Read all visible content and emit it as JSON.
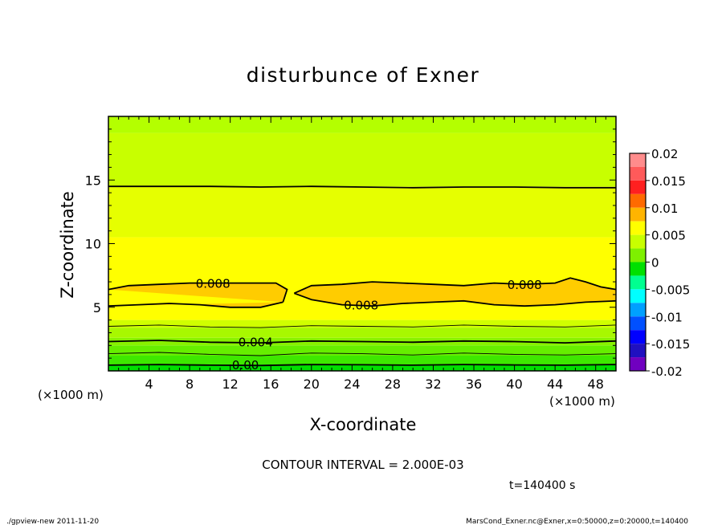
{
  "chart_data": {
    "type": "contour",
    "title": "disturbunce of Exner",
    "xlabel": "X-coordinate",
    "ylabel": "Z-coordinate",
    "x_unit_label": "(×1000 m)",
    "z_unit_label": "(×1000 m)",
    "xlim": [
      0,
      50
    ],
    "ylim": [
      0,
      20
    ],
    "x_ticks": [
      4,
      8,
      12,
      16,
      20,
      24,
      28,
      32,
      36,
      40,
      44,
      48
    ],
    "y_ticks": [
      5,
      10,
      15
    ],
    "colorbar": {
      "range": [
        -0.02,
        0.02
      ],
      "ticks": [
        "0.02",
        "0.015",
        "0.01",
        "0.005",
        "0",
        "-0.005",
        "-0.01",
        "-0.015",
        "-0.02"
      ],
      "levels": [
        {
          "from": 0.0175,
          "to": 0.02,
          "color": "#ff8c8c"
        },
        {
          "from": 0.015,
          "to": 0.0175,
          "color": "#ff5a5a"
        },
        {
          "from": 0.0125,
          "to": 0.015,
          "color": "#ff2020"
        },
        {
          "from": 0.01,
          "to": 0.0125,
          "color": "#ff6a00"
        },
        {
          "from": 0.0075,
          "to": 0.01,
          "color": "#ffb400"
        },
        {
          "from": 0.005,
          "to": 0.0075,
          "color": "#ffff00"
        },
        {
          "from": 0.0025,
          "to": 0.005,
          "color": "#c8ff00"
        },
        {
          "from": 0.0,
          "to": 0.0025,
          "color": "#7ef000"
        },
        {
          "from": -0.0025,
          "to": 0.0,
          "color": "#00e000"
        },
        {
          "from": -0.005,
          "to": -0.0025,
          "color": "#00ff90"
        },
        {
          "from": -0.0075,
          "to": -0.005,
          "color": "#00ffff"
        },
        {
          "from": -0.01,
          "to": -0.0075,
          "color": "#00a0ff"
        },
        {
          "from": -0.0125,
          "to": -0.01,
          "color": "#0050ff"
        },
        {
          "from": -0.015,
          "to": -0.0125,
          "color": "#0000ff"
        },
        {
          "from": -0.0175,
          "to": -0.015,
          "color": "#2010c0"
        },
        {
          "from": -0.02,
          "to": -0.0175,
          "color": "#7000c0"
        }
      ]
    },
    "bands": [
      {
        "z_from": 0.0,
        "z_to": 0.5,
        "color": "#00e000"
      },
      {
        "z_from": 0.5,
        "z_to": 1.2,
        "color": "#3ee800"
      },
      {
        "z_from": 1.2,
        "z_to": 2.0,
        "color": "#66ee00"
      },
      {
        "z_from": 2.0,
        "z_to": 2.6,
        "color": "#88f200"
      },
      {
        "z_from": 2.6,
        "z_to": 3.4,
        "color": "#a8f800"
      },
      {
        "z_from": 3.4,
        "z_to": 4.0,
        "color": "#d0ff00"
      },
      {
        "z_from": 4.0,
        "z_to": 10.5,
        "color": "#ffff00"
      },
      {
        "z_from": 10.5,
        "z_to": 14.5,
        "color": "#e6ff00"
      },
      {
        "z_from": 14.5,
        "z_to": 18.7,
        "color": "#c8ff00"
      },
      {
        "z_from": 18.7,
        "z_to": 20.0,
        "color": "#b4ff00"
      }
    ],
    "contour_interval_value": 0.002,
    "contour_lines": [
      {
        "level": 0.0,
        "label": "0.00",
        "label_x": 13.5,
        "z": [
          0.45,
          0.5,
          0.45,
          0.42,
          0.5,
          0.48,
          0.45,
          0.5,
          0.47,
          0.45,
          0.5
        ]
      },
      {
        "level": 0.002,
        "z": [
          1.35,
          1.45,
          1.3,
          1.2,
          1.4,
          1.35,
          1.25,
          1.4,
          1.3,
          1.25,
          1.35
        ]
      },
      {
        "level": 0.004,
        "label": "0.004",
        "label_x": 14.5,
        "z": [
          2.3,
          2.4,
          2.25,
          2.2,
          2.35,
          2.3,
          2.25,
          2.35,
          2.3,
          2.2,
          2.35
        ]
      },
      {
        "level": 0.006,
        "z": [
          3.5,
          3.6,
          3.45,
          3.4,
          3.55,
          3.5,
          3.45,
          3.6,
          3.5,
          3.45,
          3.6
        ]
      },
      {
        "level": 0.01,
        "z": [
          14.5,
          14.5,
          14.5,
          14.45,
          14.5,
          14.45,
          14.4,
          14.45,
          14.45,
          14.4,
          14.4
        ]
      }
    ],
    "contour_008_labels": [
      {
        "label": "0.008",
        "x": 10.3,
        "z": 6.9
      },
      {
        "label": "0.008",
        "x": 24.9,
        "z": 5.2
      },
      {
        "label": "0.008",
        "x": 41.0,
        "z": 6.8
      }
    ],
    "region_008_left": {
      "top": [
        [
          0,
          6.4
        ],
        [
          2,
          6.7
        ],
        [
          5,
          6.8
        ],
        [
          8,
          6.9
        ],
        [
          11,
          6.9
        ],
        [
          14,
          6.9
        ],
        [
          16.5,
          6.9
        ],
        [
          17.6,
          6.4
        ],
        [
          17.2,
          5.4
        ]
      ],
      "bottom": [
        [
          0,
          5.1
        ],
        [
          3,
          5.2
        ],
        [
          6,
          5.3
        ],
        [
          9,
          5.2
        ],
        [
          12,
          5.0
        ],
        [
          15,
          5.0
        ],
        [
          17.2,
          5.4
        ]
      ]
    },
    "region_008_right": {
      "top": [
        [
          18.3,
          6.1
        ],
        [
          20,
          6.7
        ],
        [
          23,
          6.8
        ],
        [
          26,
          7.0
        ],
        [
          29,
          6.9
        ],
        [
          32,
          6.8
        ],
        [
          35,
          6.7
        ],
        [
          38,
          6.9
        ],
        [
          41,
          6.8
        ],
        [
          44,
          6.9
        ],
        [
          45.5,
          7.3
        ],
        [
          47,
          7.0
        ],
        [
          48.5,
          6.6
        ],
        [
          50,
          6.4
        ]
      ],
      "bottom": [
        [
          50,
          5.5
        ],
        [
          47,
          5.4
        ],
        [
          44,
          5.2
        ],
        [
          41,
          5.1
        ],
        [
          38,
          5.2
        ],
        [
          35,
          5.5
        ],
        [
          32,
          5.4
        ],
        [
          29,
          5.3
        ],
        [
          26,
          5.1
        ],
        [
          23,
          5.2
        ],
        [
          20,
          5.6
        ],
        [
          18.3,
          6.1
        ]
      ]
    }
  },
  "contour_interval": "CONTOUR INTERVAL = 2.000E-03",
  "time_label": "t=140400 s",
  "footer_left": "./gpview-new  2011-11-20",
  "footer_right": "MarsCond_Exner.nc@Exner,x=0:50000,z=0:20000,t=140400"
}
